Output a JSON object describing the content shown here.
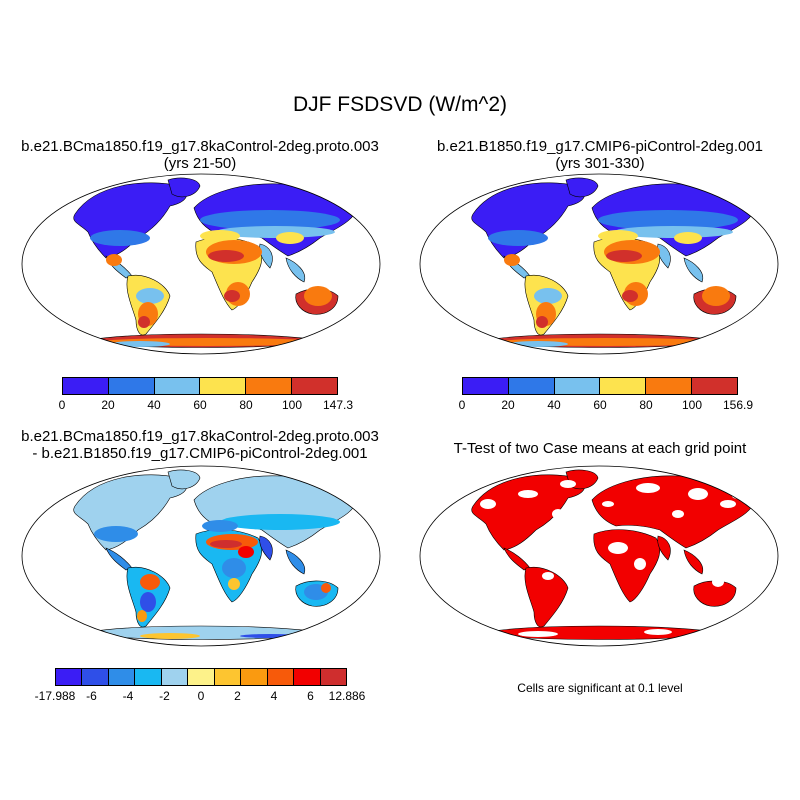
{
  "title": "DJF FSDSVD (W/m^2)",
  "colors": {
    "abs_scale": [
      "#3b1df5",
      "#2f78e8",
      "#78c1ee",
      "#fde34e",
      "#f97a0f",
      "#d1302b"
    ],
    "diff_scale": [
      "#3b1df5",
      "#2f4fe8",
      "#2f8de8",
      "#19b8f2",
      "#9fd2ee",
      "#fdf28a",
      "#fdc530",
      "#fa9a10",
      "#f75a0a",
      "#f20000",
      "#cf2e2e"
    ],
    "ttest_significant": "#f20000"
  },
  "panels": [
    {
      "name": "case",
      "title_line1": "b.e21.BCma1850.f19_g17.8kaControl-2deg.proto.003",
      "title_line2": "(yrs 21-50)",
      "colorbar_ticks": [
        "0",
        "20",
        "40",
        "60",
        "80",
        "100",
        "147.3"
      ]
    },
    {
      "name": "control",
      "title_line1": "b.e21.B1850.f19_g17.CMIP6-piControl-2deg.001",
      "title_line2": "(yrs 301-330)",
      "colorbar_ticks": [
        "0",
        "20",
        "40",
        "60",
        "80",
        "100",
        "156.9"
      ]
    },
    {
      "name": "difference",
      "title_line1": "b.e21.BCma1850.f19_g17.8kaControl-2deg.proto.003",
      "title_line2": "- b.e21.B1850.f19_g17.CMIP6-piControl-2deg.001",
      "colorbar_ticks": [
        "-17.988",
        "-6",
        "-4",
        "-2",
        "0",
        "2",
        "4",
        "6",
        "12.886"
      ]
    },
    {
      "name": "ttest",
      "title_line1": "T-Test of two Case means at each grid point",
      "note": "Cells are significant at 0.1 level"
    }
  ]
}
